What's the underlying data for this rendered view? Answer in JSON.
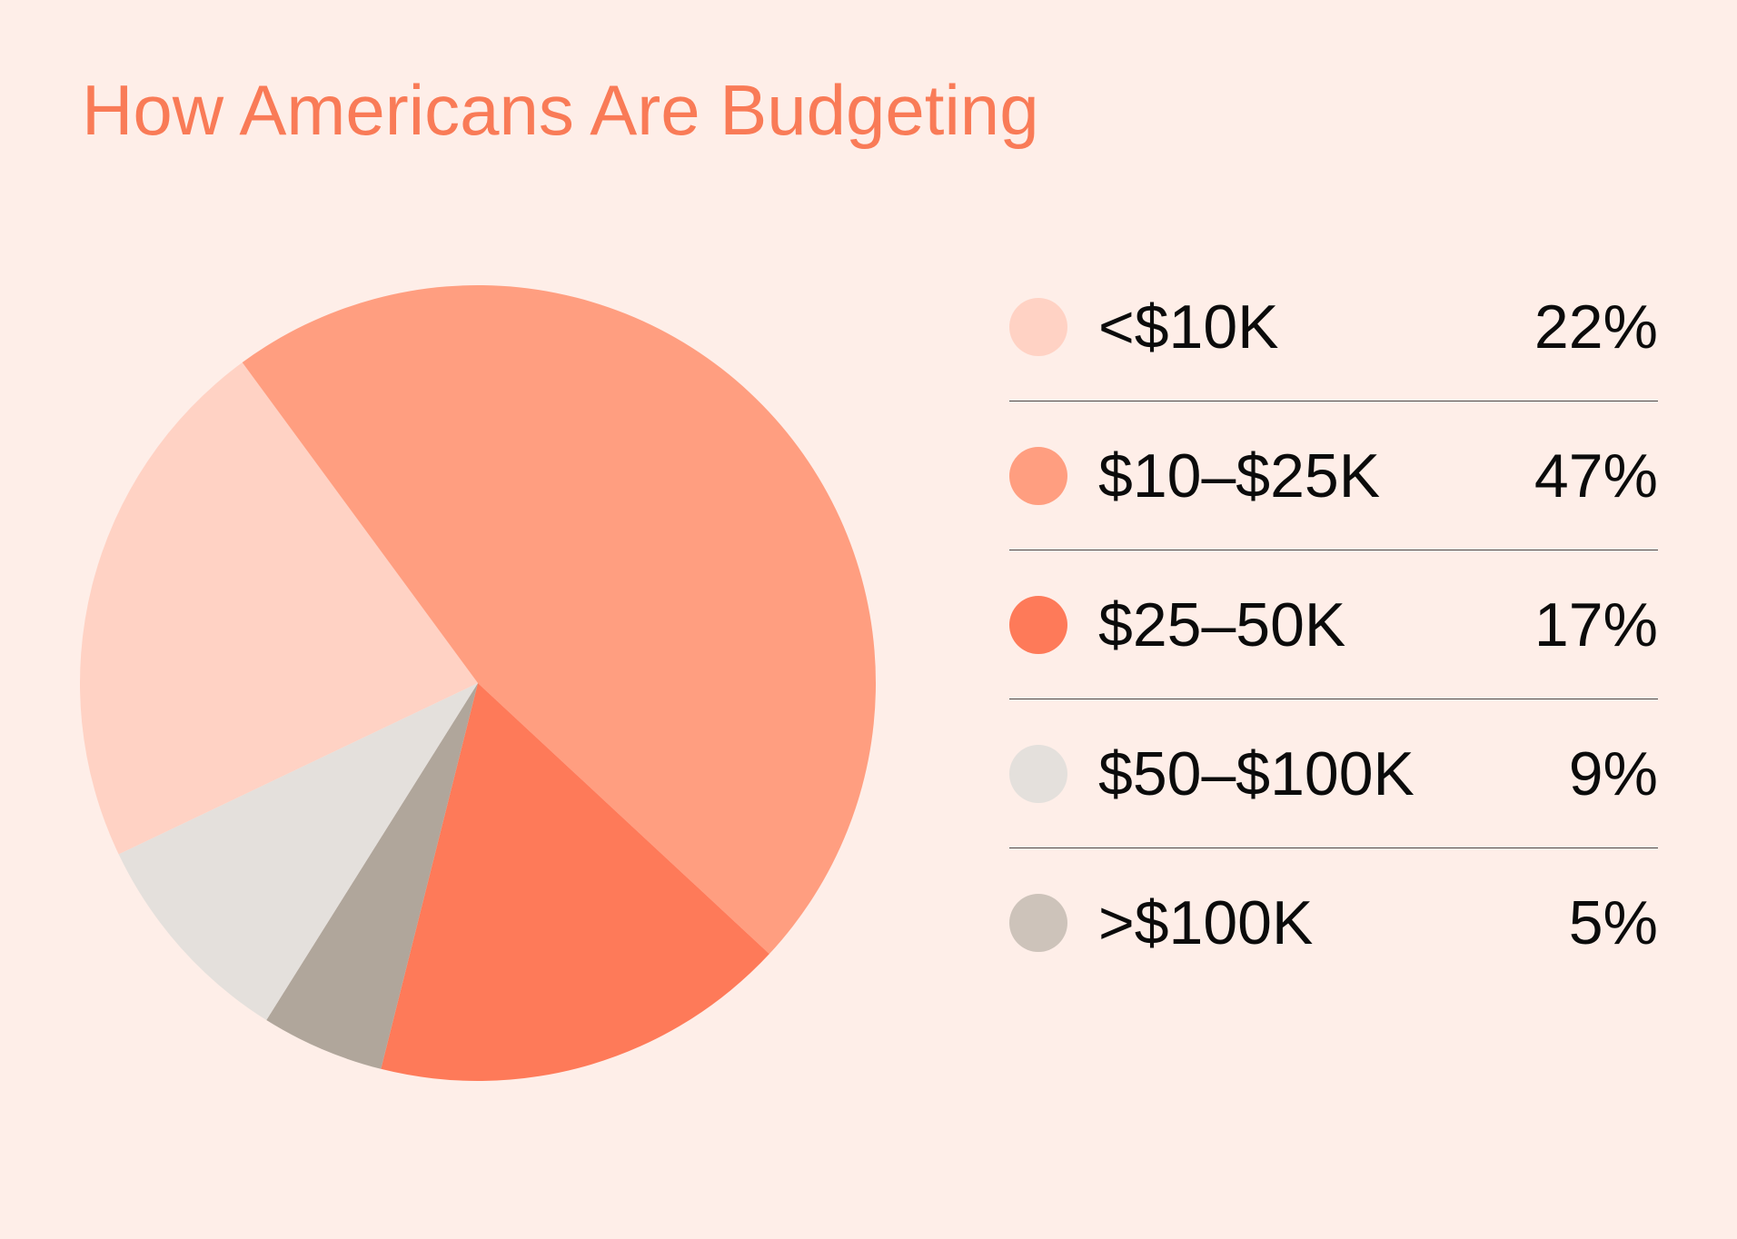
{
  "colors": {
    "background": "#FEEEE8",
    "title": "#F97B57"
  },
  "chart_data": {
    "type": "pie",
    "title": "How Americans Are Budgeting",
    "categories": [
      "<$10K",
      "$10–$25K",
      "$25–50K",
      "$50–$100K",
      ">$100K"
    ],
    "values": [
      22,
      47,
      17,
      9,
      5
    ],
    "value_labels": [
      "22%",
      "47%",
      "17%",
      "9%",
      "5%"
    ],
    "colors": [
      "#FFD2C4",
      "#FF9E80",
      "#FE7A59",
      "#E4E0DC",
      "#B0A69B"
    ],
    "legend_swatch_colors": [
      "#FFD2C4",
      "#FF9E80",
      "#FE7A59",
      "#E4E0DC",
      "#CDC3BA"
    ],
    "legend": "right"
  }
}
